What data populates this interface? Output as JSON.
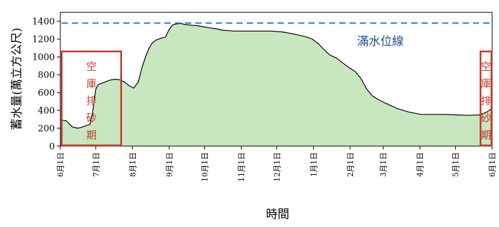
{
  "chart_data": {
    "type": "area",
    "xlabel": "時間",
    "ylabel": "蓄水量(萬立方公尺)",
    "ylim": [
      0,
      1500
    ],
    "yticks": [
      0,
      200,
      400,
      600,
      800,
      1000,
      1200,
      1400
    ],
    "x_range": [
      "06-01",
      "06-01 (next year)"
    ],
    "x_tick_labels": [
      "6月1日",
      "7月1日",
      "8月1日",
      "9月1日",
      "10月1日",
      "11月1日",
      "12月1日",
      "1月1日",
      "2月1日",
      "3月1日",
      "4月1日",
      "5月1日",
      "6月1日"
    ],
    "fill_color": "#c8e6c0",
    "line_color": "#000000",
    "capacity_line": {
      "value": 1380,
      "label": "滿水位線",
      "color": "#2a7bd0",
      "label_color": "#1f4e8c"
    },
    "annotations": [
      {
        "text": "空庫排砂期",
        "chars": [
          "空",
          "庫",
          "排",
          "砂",
          "期"
        ],
        "x_start": "06-01",
        "x_end": "07-23",
        "color": "#c0392b"
      },
      {
        "text": "空庫排砂期",
        "chars": [
          "空",
          "庫",
          "排",
          "砂",
          "期"
        ],
        "x_start": "05-21",
        "x_end": "06-01 (next year)",
        "color": "#c0392b"
      }
    ],
    "series": [
      {
        "x": [
          "06-01",
          "06-06",
          "06-11",
          "06-16",
          "06-21",
          "06-26",
          "06-28",
          "07-01",
          "07-03",
          "07-06",
          "07-09",
          "07-13",
          "07-17",
          "07-21",
          "07-25",
          "07-29",
          "08-02",
          "08-06",
          "08-09",
          "08-12",
          "08-15",
          "08-18",
          "08-21",
          "08-25",
          "08-29",
          "09-01",
          "09-04",
          "09-07",
          "09-11",
          "09-14",
          "09-17",
          "09-20",
          "09-25",
          "10-01",
          "10-06",
          "10-11",
          "10-16",
          "10-21",
          "10-26",
          "10-31",
          "11-06",
          "11-16",
          "11-26",
          "12-06",
          "12-16",
          "12-26",
          "12-31",
          "01-05",
          "01-10",
          "01-15",
          "01-20",
          "01-25",
          "01-31",
          "02-05",
          "02-10",
          "02-15",
          "02-20",
          "02-25",
          "03-03",
          "03-13",
          "03-23",
          "04-02",
          "04-12",
          "04-22",
          "05-02",
          "05-12",
          "05-22",
          "05-27",
          "06-01 (next year)"
        ],
        "values": [
          295,
          285,
          215,
          200,
          220,
          245,
          350,
          640,
          690,
          705,
          720,
          740,
          750,
          745,
          720,
          680,
          650,
          720,
          880,
          1000,
          1100,
          1160,
          1190,
          1210,
          1225,
          1310,
          1360,
          1370,
          1375,
          1365,
          1360,
          1355,
          1350,
          1335,
          1325,
          1315,
          1300,
          1295,
          1290,
          1290,
          1290,
          1290,
          1290,
          1280,
          1255,
          1225,
          1200,
          1150,
          1080,
          1020,
          990,
          940,
          880,
          840,
          760,
          640,
          560,
          520,
          480,
          420,
          380,
          355,
          355,
          355,
          350,
          345,
          350,
          380,
          420
        ]
      }
    ]
  }
}
